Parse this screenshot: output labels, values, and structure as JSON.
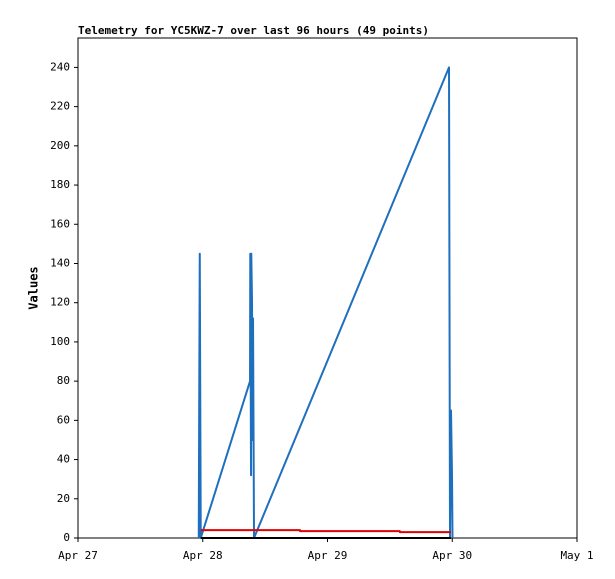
{
  "chart_data": {
    "type": "line",
    "title": "Telemetry for YC5KWZ-7 over last 96 hours (49 points)",
    "y_label": "Values",
    "xlim": [
      0,
      4
    ],
    "xticks": [
      {
        "value": 0,
        "label": "Apr 27"
      },
      {
        "value": 1,
        "label": "Apr 28"
      },
      {
        "value": 2,
        "label": "Apr 29"
      },
      {
        "value": 3,
        "label": "Apr 30"
      },
      {
        "value": 4,
        "label": "May 1"
      }
    ],
    "ylim": [
      0,
      255
    ],
    "yticks": [
      0,
      20,
      40,
      60,
      80,
      100,
      120,
      140,
      160,
      180,
      200,
      220,
      240
    ],
    "grid": false,
    "series": [
      {
        "color": "#1f6fbf",
        "x": [
          0.968,
          0.97,
          0.976,
          0.984,
          1.379,
          1.381,
          1.387,
          1.389,
          1.395,
          1.397,
          1.403,
          1.411,
          2.974,
          2.982,
          2.99,
          2.998,
          3.002
        ],
        "values": [
          0,
          40,
          145,
          0,
          80,
          145,
          32,
          145,
          120,
          50,
          112,
          0,
          240,
          0,
          65,
          32,
          0
        ]
      },
      {
        "color": "#e00000",
        "x": [
          0.984,
          1.78,
          1.78,
          2.58,
          2.58,
          2.99
        ],
        "values": [
          4,
          4,
          3.5,
          3.5,
          3,
          3
        ]
      },
      {
        "color": "#000000",
        "x": [
          0.984,
          2.99
        ],
        "values": [
          0,
          0
        ]
      }
    ]
  }
}
